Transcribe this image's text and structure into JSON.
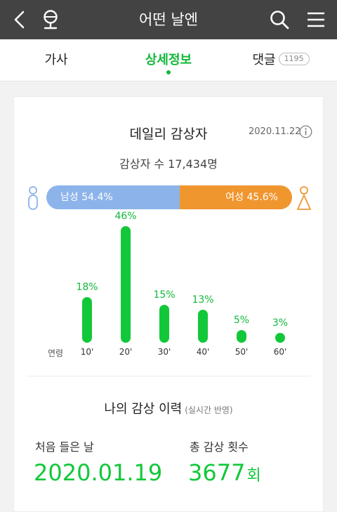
{
  "header": {
    "title": "어떤 날엔",
    "back_icon": "chevron-left-icon",
    "mic_icon": "microphone-icon",
    "search_icon": "search-icon",
    "menu_icon": "hamburger-menu-icon"
  },
  "tabs": [
    {
      "label": "가사",
      "active": false
    },
    {
      "label": "상세정보",
      "active": true
    },
    {
      "label": "댓글",
      "count": "1195",
      "active": false
    }
  ],
  "daily": {
    "title": "데일리 감상자",
    "date": "2020.11.22",
    "listeners": "감상자 수 17,434명",
    "male_label": "남성 54.4%",
    "female_label": "여성 45.6%",
    "male_fraction": 0.544,
    "colors": {
      "male": "#8db4ea",
      "female": "#f0962f",
      "accent": "#12c83a"
    }
  },
  "chart_data": {
    "type": "bar",
    "xlabel": "연령",
    "categories": [
      "10'",
      "20'",
      "30'",
      "40'",
      "50'",
      "60'"
    ],
    "values": [
      18,
      46,
      15,
      13,
      5,
      3
    ],
    "value_labels": [
      "18%",
      "46%",
      "15%",
      "13%",
      "5%",
      "3%"
    ],
    "ylim": [
      0,
      46
    ]
  },
  "history": {
    "title": "나의 감상 이력",
    "subtitle": "(실시간 반영)",
    "first_label": "처음 들은 날",
    "first_value": "2020.01.19",
    "total_label": "총 감상 횟수",
    "total_value": "3677",
    "total_unit": "회"
  }
}
